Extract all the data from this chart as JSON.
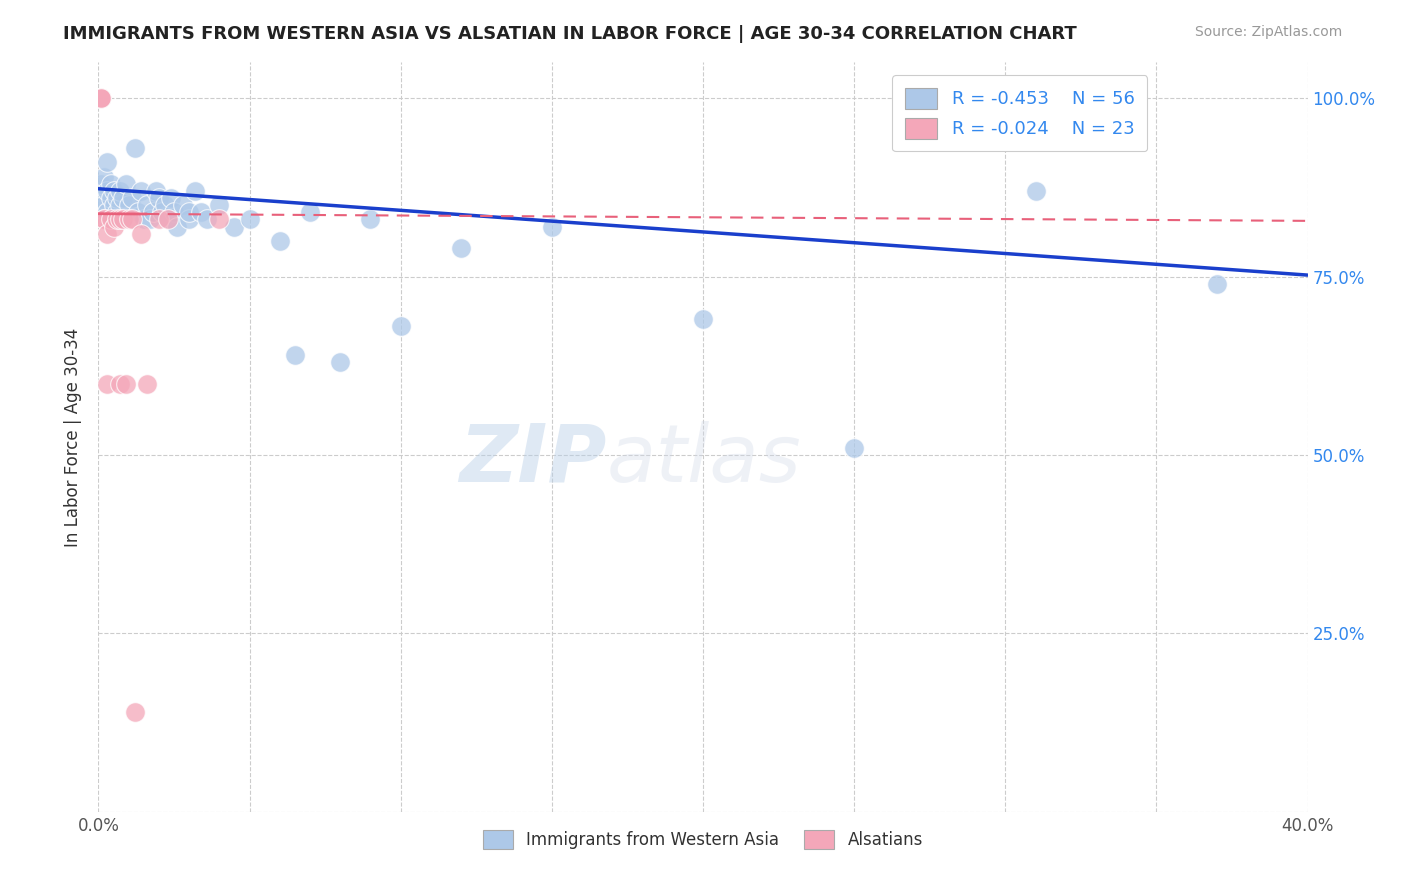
{
  "title": "IMMIGRANTS FROM WESTERN ASIA VS ALSATIAN IN LABOR FORCE | AGE 30-34 CORRELATION CHART",
  "source": "Source: ZipAtlas.com",
  "ylabel": "In Labor Force | Age 30-34",
  "xlim": [
    0.0,
    0.4
  ],
  "ylim": [
    0.0,
    1.05
  ],
  "y_tick_positions": [
    0.0,
    0.25,
    0.5,
    0.75,
    1.0
  ],
  "x_tick_positions": [
    0.0,
    0.05,
    0.1,
    0.15,
    0.2,
    0.25,
    0.3,
    0.35,
    0.4
  ],
  "blue_color": "#adc8e8",
  "pink_color": "#f4a7b9",
  "trend_blue_color": "#1a3fcc",
  "trend_pink_color": "#e8607a",
  "blue_scatter_x": [
    0.001,
    0.001,
    0.002,
    0.002,
    0.003,
    0.003,
    0.003,
    0.004,
    0.004,
    0.005,
    0.005,
    0.006,
    0.006,
    0.007,
    0.007,
    0.008,
    0.008,
    0.009,
    0.01,
    0.011,
    0.012,
    0.013,
    0.014,
    0.015,
    0.016,
    0.017,
    0.018,
    0.019,
    0.02,
    0.021,
    0.022,
    0.023,
    0.024,
    0.025,
    0.026,
    0.028,
    0.03,
    0.03,
    0.032,
    0.034,
    0.036,
    0.04,
    0.045,
    0.05,
    0.06,
    0.065,
    0.07,
    0.08,
    0.09,
    0.1,
    0.12,
    0.15,
    0.2,
    0.25,
    0.31,
    0.37
  ],
  "blue_scatter_y": [
    0.86,
    0.88,
    0.85,
    0.89,
    0.87,
    0.84,
    0.91,
    0.86,
    0.88,
    0.85,
    0.87,
    0.84,
    0.86,
    0.85,
    0.87,
    0.83,
    0.86,
    0.88,
    0.85,
    0.86,
    0.93,
    0.84,
    0.87,
    0.83,
    0.85,
    0.83,
    0.84,
    0.87,
    0.86,
    0.84,
    0.85,
    0.83,
    0.86,
    0.84,
    0.82,
    0.85,
    0.83,
    0.84,
    0.87,
    0.84,
    0.83,
    0.85,
    0.82,
    0.83,
    0.8,
    0.64,
    0.84,
    0.63,
    0.83,
    0.68,
    0.79,
    0.82,
    0.69,
    0.51,
    0.87,
    0.74
  ],
  "pink_scatter_x": [
    0.001,
    0.001,
    0.001,
    0.001,
    0.002,
    0.002,
    0.003,
    0.003,
    0.004,
    0.005,
    0.006,
    0.007,
    0.007,
    0.008,
    0.009,
    0.01,
    0.011,
    0.012,
    0.014,
    0.016,
    0.02,
    0.023,
    0.04
  ],
  "pink_scatter_y": [
    1.0,
    1.0,
    1.0,
    1.0,
    0.83,
    0.83,
    0.81,
    0.6,
    0.83,
    0.82,
    0.83,
    0.6,
    0.83,
    0.83,
    0.6,
    0.83,
    0.83,
    0.14,
    0.81,
    0.6,
    0.83,
    0.83,
    0.83
  ],
  "watermark_zip": "ZIP",
  "watermark_atlas": "atlas",
  "legend_r_blue": "-0.453",
  "legend_n_blue": "56",
  "legend_r_pink": "-0.024",
  "legend_n_pink": "23"
}
